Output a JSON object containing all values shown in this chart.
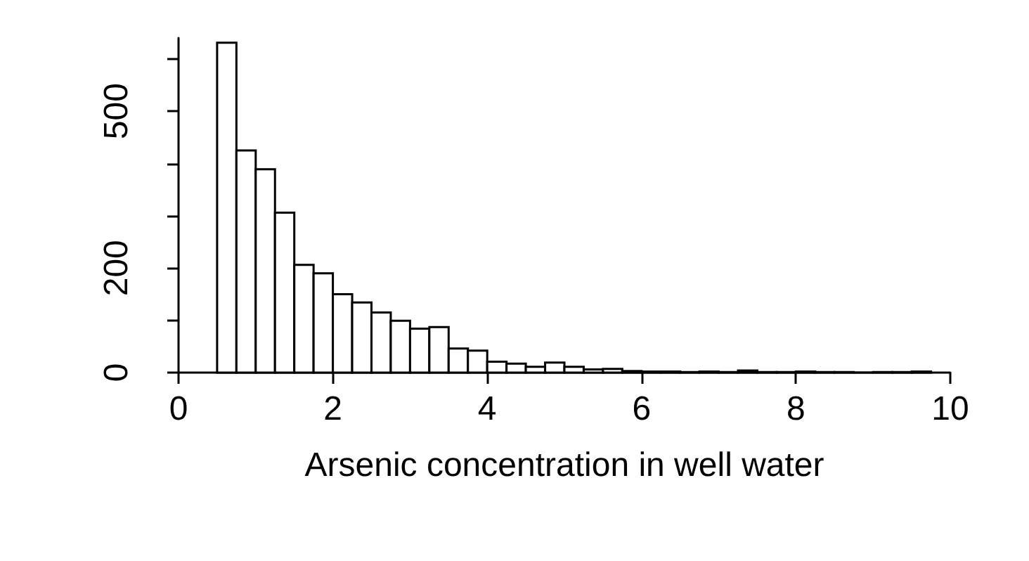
{
  "chart_data": {
    "type": "histogram",
    "xlabel": "Arsenic concentration in well water",
    "bins": [
      0.5,
      0.75,
      1,
      1.25,
      1.5,
      1.75,
      2,
      2.25,
      2.5,
      2.75,
      3,
      3.25,
      3.5,
      3.75,
      4,
      4.25,
      4.5,
      4.75,
      5,
      5.25,
      5.5,
      5.75,
      6,
      6.25,
      6.5,
      6.75,
      7,
      7.25,
      7.5,
      7.75,
      8,
      8.25,
      8.5,
      8.75,
      9,
      9.25,
      9.5,
      9.75
    ],
    "values": [
      631,
      425,
      389,
      306,
      206,
      190,
      150,
      134,
      115,
      99,
      84,
      87,
      46,
      42,
      21,
      17,
      11,
      19,
      11,
      6,
      7,
      3,
      2,
      2,
      1,
      2,
      1,
      4,
      1,
      1,
      2,
      1,
      1,
      0,
      1,
      1,
      2
    ],
    "color": "#ffffff",
    "xlim": [
      0,
      10
    ],
    "xticks": [
      0,
      2,
      4,
      6,
      8,
      10
    ],
    "ylim": [
      0,
      640
    ],
    "yticks": [
      0,
      {
        "value": 100,
        "label": null
      },
      200,
      {
        "value": 300,
        "label": null
      },
      {
        "value": 400,
        "label": null
      },
      500,
      {
        "value": 600,
        "label": null
      }
    ],
    "grid": false
  }
}
